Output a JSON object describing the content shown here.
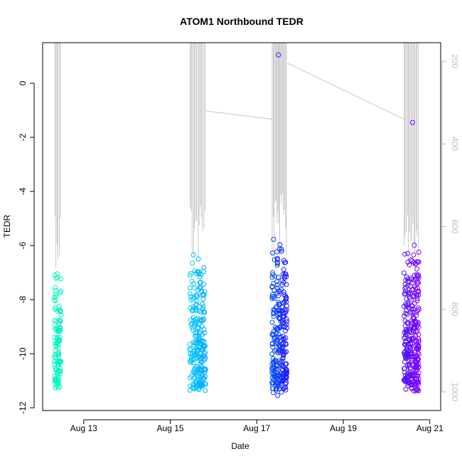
{
  "chart_data": {
    "type": "scatter",
    "title": "ATOM1 Northbound TEDR",
    "xlabel": "Date",
    "ylabel": "TEDR",
    "x_ticks": [
      "Aug 13",
      "Aug 15",
      "Aug 17",
      "Aug 19",
      "Aug 21"
    ],
    "x_tick_values": [
      13,
      15,
      17,
      19,
      21
    ],
    "xlim": [
      12.05,
      21.25
    ],
    "ylim": [
      -12.1,
      1.5
    ],
    "y_ticks": [
      0,
      -2,
      -4,
      -6,
      -8,
      -10,
      -12
    ],
    "right_axis": {
      "description": "depth",
      "ticks": [
        200,
        400,
        600,
        800,
        1000
      ],
      "ylim": [
        1045,
        155
      ],
      "inverted": true,
      "color": "#bdbdbd"
    },
    "grid": false,
    "clusters": [
      {
        "x_start": 12.32,
        "x_end": 12.48,
        "y_top": -6.2,
        "y_bottom": -11.4,
        "count": 110,
        "color_start": "#00ffb0",
        "color_end": "#00e8d0"
      },
      {
        "x_start": 15.45,
        "x_end": 15.82,
        "y_top": -6.2,
        "y_bottom": -11.5,
        "count": 230,
        "color_start": "#00ccff",
        "color_end": "#00a8ff"
      },
      {
        "x_start": 17.35,
        "x_end": 17.7,
        "y_top": -5.5,
        "y_bottom": -11.6,
        "count": 260,
        "color_start": "#0050ff",
        "color_end": "#1a10ff"
      },
      {
        "x_start": 20.4,
        "x_end": 20.75,
        "y_top": -5.8,
        "y_bottom": -11.4,
        "count": 300,
        "color_start": "#4a10ff",
        "color_end": "#8000ff"
      }
    ],
    "outliers": [
      {
        "x": 17.5,
        "y": 1.05,
        "color": "#1a30ff"
      },
      {
        "x": 20.6,
        "y": -1.45,
        "color": "#7000ff"
      }
    ],
    "depth_series_color": "#c8c8c8"
  }
}
